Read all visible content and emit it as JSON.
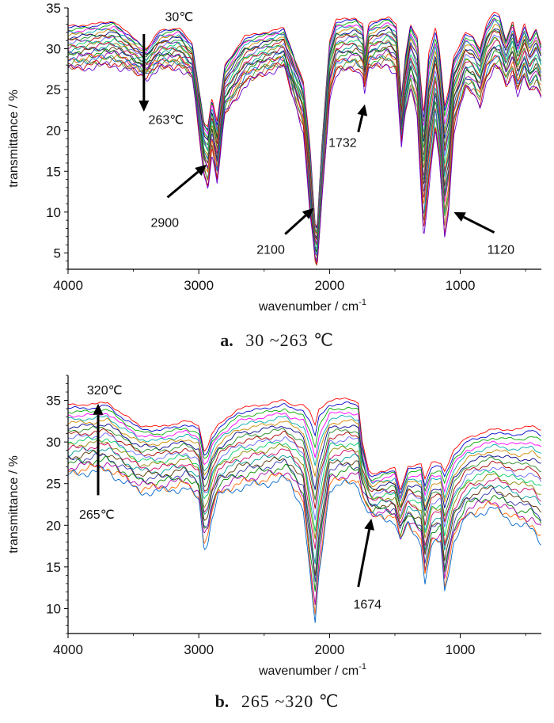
{
  "chart_data": [
    {
      "type": "line",
      "caption_letter": "a.",
      "caption_text": "30 ~263 ℃",
      "xlabel": "wavenumber / cm",
      "xlabel_sup": "-1",
      "ylabel": "transmittance / %",
      "xlim": [
        4000,
        380
      ],
      "x_reversed": true,
      "ylim": [
        3,
        35
      ],
      "xticks": [
        4000,
        3000,
        2000,
        1000
      ],
      "yticks": [
        5,
        10,
        15,
        20,
        25,
        30,
        35
      ],
      "grid": false,
      "series_count": 24,
      "profile_top": [
        [
          4000,
          32.8
        ],
        [
          3800,
          33.0
        ],
        [
          3650,
          33.4
        ],
        [
          3550,
          32.0
        ],
        [
          3400,
          30.0
        ],
        [
          3300,
          32.2
        ],
        [
          3150,
          32.6
        ],
        [
          3050,
          30.5
        ],
        [
          2960,
          21.0
        ],
        [
          2930,
          20.5
        ],
        [
          2900,
          24.0
        ],
        [
          2860,
          21.0
        ],
        [
          2800,
          28.0
        ],
        [
          2650,
          31.5
        ],
        [
          2500,
          32.0
        ],
        [
          2350,
          32.5
        ],
        [
          2200,
          26.0
        ],
        [
          2150,
          18.0
        ],
        [
          2110,
          8.5
        ],
        [
          2095,
          8.0
        ],
        [
          2060,
          18.0
        ],
        [
          2000,
          31.0
        ],
        [
          1950,
          33.5
        ],
        [
          1800,
          33.8
        ],
        [
          1745,
          33.0
        ],
        [
          1732,
          29.5
        ],
        [
          1700,
          33.0
        ],
        [
          1550,
          34.0
        ],
        [
          1490,
          33.0
        ],
        [
          1450,
          24.0
        ],
        [
          1420,
          29.0
        ],
        [
          1380,
          33.0
        ],
        [
          1330,
          31.5
        ],
        [
          1280,
          22.0
        ],
        [
          1240,
          29.5
        ],
        [
          1190,
          32.5
        ],
        [
          1160,
          30.0
        ],
        [
          1120,
          23.0
        ],
        [
          1090,
          25.0
        ],
        [
          1050,
          29.0
        ],
        [
          1000,
          30.5
        ],
        [
          960,
          32.0
        ],
        [
          900,
          31.5
        ],
        [
          850,
          30.0
        ],
        [
          800,
          33.0
        ],
        [
          740,
          34.5
        ],
        [
          700,
          34.0
        ],
        [
          650,
          31.0
        ],
        [
          600,
          33.5
        ],
        [
          560,
          30.5
        ],
        [
          510,
          33.0
        ],
        [
          470,
          31.0
        ],
        [
          420,
          32.5
        ],
        [
          380,
          30.5
        ]
      ],
      "profile_bottom": [
        [
          4000,
          27.5
        ],
        [
          3800,
          27.8
        ],
        [
          3650,
          28.0
        ],
        [
          3550,
          27.5
        ],
        [
          3400,
          26.5
        ],
        [
          3300,
          27.6
        ],
        [
          3150,
          27.7
        ],
        [
          3050,
          26.5
        ],
        [
          2960,
          14.5
        ],
        [
          2930,
          13.0
        ],
        [
          2900,
          17.5
        ],
        [
          2860,
          13.5
        ],
        [
          2800,
          22.0
        ],
        [
          2650,
          25.5
        ],
        [
          2500,
          27.0
        ],
        [
          2350,
          27.8
        ],
        [
          2200,
          20.0
        ],
        [
          2150,
          10.0
        ],
        [
          2110,
          4.0
        ],
        [
          2095,
          3.5
        ],
        [
          2060,
          11.0
        ],
        [
          2000,
          24.0
        ],
        [
          1950,
          27.0
        ],
        [
          1800,
          27.5
        ],
        [
          1745,
          26.8
        ],
        [
          1732,
          25.0
        ],
        [
          1700,
          27.5
        ],
        [
          1550,
          28.0
        ],
        [
          1490,
          27.0
        ],
        [
          1450,
          18.0
        ],
        [
          1420,
          22.0
        ],
        [
          1380,
          25.0
        ],
        [
          1330,
          22.0
        ],
        [
          1280,
          7.0
        ],
        [
          1240,
          13.0
        ],
        [
          1190,
          20.0
        ],
        [
          1160,
          16.0
        ],
        [
          1120,
          7.0
        ],
        [
          1090,
          10.0
        ],
        [
          1050,
          20.0
        ],
        [
          1000,
          23.0
        ],
        [
          960,
          25.0
        ],
        [
          900,
          24.5
        ],
        [
          850,
          23.0
        ],
        [
          800,
          26.0
        ],
        [
          740,
          27.5
        ],
        [
          700,
          27.5
        ],
        [
          650,
          25.5
        ],
        [
          600,
          27.0
        ],
        [
          560,
          24.5
        ],
        [
          510,
          26.5
        ],
        [
          470,
          24.5
        ],
        [
          420,
          25.5
        ],
        [
          380,
          24.0
        ]
      ],
      "annotations": [
        {
          "text": "30℃",
          "kind": "label",
          "x": 3150,
          "y": 33.4
        },
        {
          "text": "263℃",
          "kind": "label",
          "x": 3250,
          "y": 20.8
        },
        {
          "text": "2900",
          "kind": "label",
          "x": 3260,
          "y": 8.2
        },
        {
          "text": "2100",
          "kind": "label",
          "x": 2450,
          "y": 4.9
        },
        {
          "text": "1732",
          "kind": "label",
          "x": 1900,
          "y": 18.0
        },
        {
          "text": "1120",
          "kind": "label",
          "x": 690,
          "y": 4.9
        }
      ],
      "arrows": [
        {
          "from": [
            3420,
            31.8
          ],
          "to": [
            3420,
            22.3
          ]
        },
        {
          "from": [
            3240,
            11.8
          ],
          "to": [
            2940,
            15.8
          ]
        },
        {
          "from": [
            2340,
            7.3
          ],
          "to": [
            2120,
            10.5
          ]
        },
        {
          "from": [
            1780,
            19.8
          ],
          "to": [
            1730,
            23.2
          ]
        },
        {
          "from": [
            740,
            7.5
          ],
          "to": [
            1050,
            10.0
          ]
        }
      ]
    },
    {
      "type": "line",
      "caption_letter": "b.",
      "caption_text": "265 ~320 ℃",
      "xlabel": "wavenumber / cm",
      "xlabel_sup": "-1",
      "ylabel": "transmittance / %",
      "xlim": [
        4000,
        380
      ],
      "x_reversed": true,
      "ylim": [
        7,
        38
      ],
      "xticks": [
        4000,
        3000,
        2000,
        1000
      ],
      "yticks": [
        10,
        15,
        20,
        25,
        30,
        35
      ],
      "grid": false,
      "series_count": 20,
      "profile_top": [
        [
          4000,
          34.5
        ],
        [
          3800,
          34.5
        ],
        [
          3700,
          34.8
        ],
        [
          3600,
          33.5
        ],
        [
          3450,
          32.0
        ],
        [
          3300,
          31.8
        ],
        [
          3100,
          32.5
        ],
        [
          3000,
          32.0
        ],
        [
          2960,
          29.0
        ],
        [
          2930,
          29.5
        ],
        [
          2900,
          31.0
        ],
        [
          2850,
          32.0
        ],
        [
          2700,
          34.0
        ],
        [
          2500,
          34.5
        ],
        [
          2340,
          35.0
        ],
        [
          2300,
          34.5
        ],
        [
          2200,
          34.5
        ],
        [
          2150,
          33.5
        ],
        [
          2110,
          32.0
        ],
        [
          2080,
          34.0
        ],
        [
          2000,
          35.0
        ],
        [
          1850,
          35.2
        ],
        [
          1780,
          34.8
        ],
        [
          1750,
          30.0
        ],
        [
          1700,
          26.5
        ],
        [
          1674,
          26.0
        ],
        [
          1600,
          26.5
        ],
        [
          1500,
          27.0
        ],
        [
          1460,
          24.0
        ],
        [
          1400,
          27.0
        ],
        [
          1300,
          27.5
        ],
        [
          1270,
          25.5
        ],
        [
          1220,
          27.5
        ],
        [
          1150,
          27.5
        ],
        [
          1120,
          26.5
        ],
        [
          1050,
          29.0
        ],
        [
          950,
          30.5
        ],
        [
          850,
          31.0
        ],
        [
          750,
          31.5
        ],
        [
          650,
          31.5
        ],
        [
          550,
          31.5
        ],
        [
          450,
          32.0
        ],
        [
          380,
          31.5
        ]
      ],
      "profile_bottom": [
        [
          4000,
          26.0
        ],
        [
          3800,
          26.5
        ],
        [
          3700,
          26.5
        ],
        [
          3600,
          25.5
        ],
        [
          3450,
          24.0
        ],
        [
          3300,
          24.0
        ],
        [
          3100,
          24.5
        ],
        [
          3000,
          23.0
        ],
        [
          2960,
          17.5
        ],
        [
          2930,
          18.0
        ],
        [
          2900,
          21.0
        ],
        [
          2850,
          23.5
        ],
        [
          2700,
          24.5
        ],
        [
          2500,
          25.0
        ],
        [
          2340,
          25.5
        ],
        [
          2300,
          25.0
        ],
        [
          2200,
          22.0
        ],
        [
          2150,
          14.0
        ],
        [
          2110,
          8.0
        ],
        [
          2080,
          14.0
        ],
        [
          2000,
          24.5
        ],
        [
          1850,
          25.0
        ],
        [
          1780,
          25.0
        ],
        [
          1750,
          23.0
        ],
        [
          1700,
          21.5
        ],
        [
          1674,
          21.0
        ],
        [
          1600,
          21.0
        ],
        [
          1500,
          20.5
        ],
        [
          1460,
          18.0
        ],
        [
          1400,
          20.0
        ],
        [
          1300,
          18.0
        ],
        [
          1270,
          13.0
        ],
        [
          1220,
          17.5
        ],
        [
          1150,
          18.0
        ],
        [
          1120,
          12.0
        ],
        [
          1050,
          18.0
        ],
        [
          950,
          21.0
        ],
        [
          850,
          21.5
        ],
        [
          750,
          22.0
        ],
        [
          650,
          21.0
        ],
        [
          550,
          20.0
        ],
        [
          450,
          19.5
        ],
        [
          380,
          18.0
        ]
      ],
      "annotations": [
        {
          "text": "320℃",
          "kind": "label",
          "x": 3720,
          "y": 35.7
        },
        {
          "text": "265℃",
          "kind": "label",
          "x": 3780,
          "y": 20.8
        },
        {
          "text": "1674",
          "kind": "label",
          "x": 1710,
          "y": 10.0
        }
      ],
      "arrows": [
        {
          "from": [
            3770,
            23.6
          ],
          "to": [
            3770,
            34.6
          ]
        },
        {
          "from": [
            1780,
            12.6
          ],
          "to": [
            1680,
            20.8
          ]
        }
      ]
    }
  ],
  "palette": [
    "#ff0000",
    "#0000cc",
    "#00aa00",
    "#ff00ff",
    "#00aaaa",
    "#cc8800",
    "#000088",
    "#228822",
    "#aa0000",
    "#6666ff",
    "#00cc66",
    "#888800",
    "#cc0066",
    "#009999",
    "#553300",
    "#3333aa",
    "#008800",
    "#aa00aa",
    "#ff6600",
    "#0066cc",
    "#33aa33",
    "#996633",
    "#cc0000",
    "#6600cc"
  ]
}
